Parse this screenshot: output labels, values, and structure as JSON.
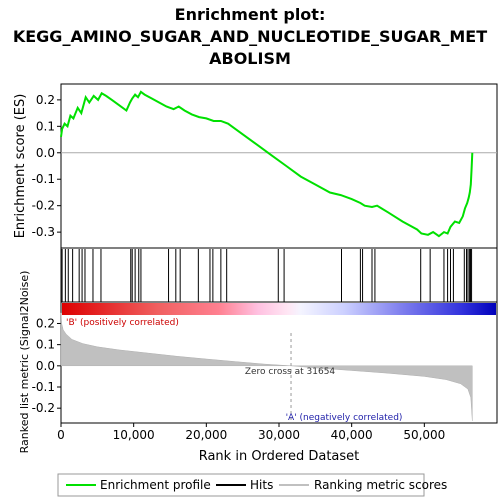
{
  "chart_data": {
    "type": "line",
    "title_lines": [
      "Enrichment plot:",
      "KEGG_AMINO_SUGAR_AND_NUCLEOTIDE_SUGAR_MET",
      "ABOLISM"
    ],
    "ylabel_top": "Enrichment score (ES)",
    "ylabel_bottom": "Ranked list metric (Signal2Noise)",
    "xlabel": "Rank in Ordered Dataset",
    "x_ticks": [
      0,
      10000,
      20000,
      30000,
      40000,
      50000
    ],
    "x_tick_labels": [
      "0",
      "10,000",
      "20,000",
      "30,000",
      "40,000",
      "50,000"
    ],
    "xlim": [
      0,
      60000
    ],
    "es_ylim": [
      -0.36,
      0.26
    ],
    "es_ticks": [
      -0.3,
      -0.2,
      -0.1,
      0.0,
      0.1,
      0.2
    ],
    "es_tick_labels": [
      "-0.3",
      "-0.2",
      "-0.1",
      "0.0",
      "0.1",
      "0.2"
    ],
    "metric_ylim": [
      -0.27,
      0.24
    ],
    "metric_ticks": [
      -0.2,
      -0.1,
      0.0,
      0.1,
      0.2
    ],
    "metric_tick_labels": [
      "-0.2",
      "-0.1",
      "0.0",
      "0.1",
      "0.2"
    ],
    "enrichment_profile": {
      "name": "Enrichment profile",
      "color": "#00e000",
      "x": [
        0,
        150,
        500,
        900,
        1300,
        1700,
        2300,
        2800,
        3400,
        3900,
        4500,
        5100,
        5600,
        6200,
        7000,
        8000,
        9000,
        9500,
        9800,
        10200,
        10600,
        11000,
        11500,
        12500,
        13500,
        14500,
        15000,
        15500,
        16200,
        17000,
        18000,
        19000,
        20000,
        21000,
        22000,
        23000,
        25000,
        27000,
        29000,
        31000,
        33000,
        35000,
        37000,
        38500,
        40000,
        41200,
        41800,
        42800,
        43500,
        45000,
        47000,
        49000,
        49600,
        50500,
        51200,
        52000,
        52700,
        53200,
        53600,
        54200,
        54800,
        55300,
        55600,
        55900,
        56100,
        56250,
        56400,
        56500,
        56600
      ],
      "y": [
        0.06,
        0.09,
        0.11,
        0.1,
        0.14,
        0.13,
        0.17,
        0.15,
        0.21,
        0.19,
        0.215,
        0.2,
        0.225,
        0.215,
        0.2,
        0.18,
        0.16,
        0.19,
        0.205,
        0.22,
        0.21,
        0.23,
        0.22,
        0.205,
        0.19,
        0.175,
        0.17,
        0.165,
        0.175,
        0.16,
        0.145,
        0.135,
        0.13,
        0.12,
        0.12,
        0.11,
        0.07,
        0.03,
        -0.01,
        -0.05,
        -0.09,
        -0.12,
        -0.15,
        -0.16,
        -0.175,
        -0.19,
        -0.2,
        -0.205,
        -0.2,
        -0.225,
        -0.26,
        -0.29,
        -0.305,
        -0.31,
        -0.3,
        -0.315,
        -0.3,
        -0.305,
        -0.28,
        -0.26,
        -0.265,
        -0.24,
        -0.21,
        -0.19,
        -0.17,
        -0.15,
        -0.12,
        -0.06,
        0.0
      ]
    },
    "hits": {
      "name": "Hits",
      "color": "#000000",
      "x": [
        150,
        600,
        1000,
        1600,
        2500,
        2900,
        3300,
        4400,
        5500,
        9600,
        9800,
        10200,
        10700,
        11000,
        14800,
        15800,
        16400,
        18900,
        20500,
        20900,
        22000,
        22800,
        29900,
        30700,
        38600,
        41200,
        41500,
        42800,
        43200,
        49500,
        50800,
        52700,
        53200,
        53600,
        54000,
        55500,
        55800,
        56000,
        56200,
        56350,
        56500
      ]
    },
    "ranking_metric": {
      "name": "Ranking metric scores",
      "color": "#c0c0c0",
      "x": [
        0,
        100,
        300,
        700,
        1500,
        3000,
        5000,
        8000,
        12000,
        16000,
        20000,
        24000,
        28000,
        31654,
        35000,
        40000,
        45000,
        50000,
        53000,
        55000,
        56000,
        56400,
        56600
      ],
      "y": [
        0.25,
        0.2,
        0.17,
        0.15,
        0.125,
        0.105,
        0.09,
        0.075,
        0.06,
        0.045,
        0.032,
        0.02,
        0.008,
        0.0,
        -0.01,
        -0.022,
        -0.035,
        -0.05,
        -0.065,
        -0.085,
        -0.11,
        -0.15,
        -0.26
      ]
    },
    "zero_cross": 31654,
    "zero_cross_label": "Zero cross at 31654",
    "positive_label": "'B' (positively correlated)",
    "negative_label": "'A' (negatively correlated)",
    "legend": {
      "placement": "bottom",
      "entries": [
        "Enrichment profile",
        "Hits",
        "Ranking metric scores"
      ]
    },
    "colors": {
      "positive_band": "#dd0000",
      "negative_band": "#0000cc",
      "positive_text": "#cc0000",
      "negative_text": "#2222aa",
      "zero_line": "#999999",
      "frame": "#000000"
    }
  }
}
